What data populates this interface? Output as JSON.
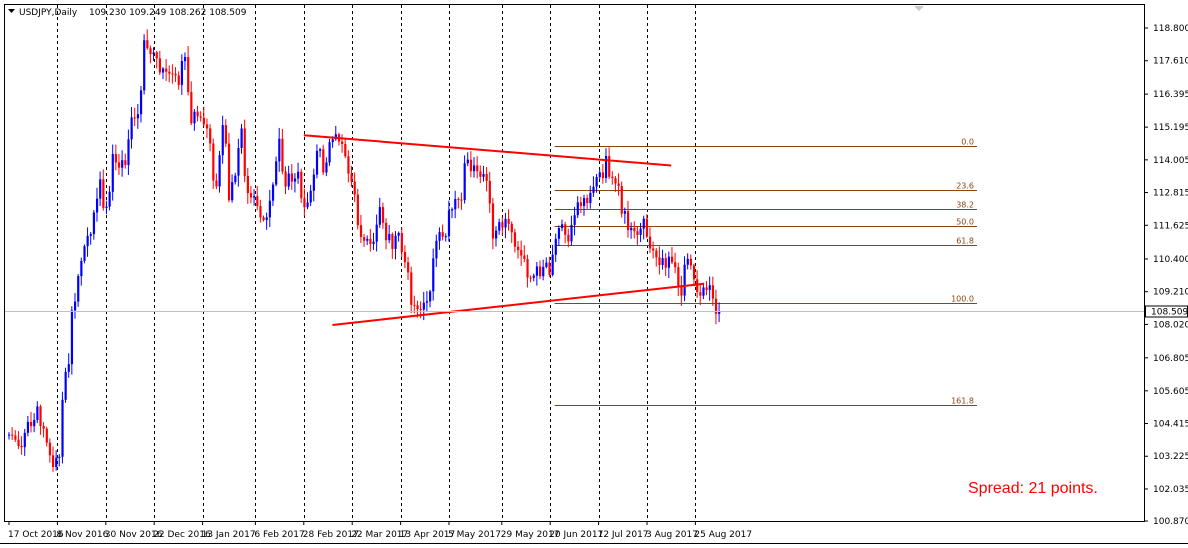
{
  "header": {
    "symbol": "USDJPY,Daily",
    "ohlc": "109.230 109.249 108.262 108.509"
  },
  "annotations": {
    "spread": "Spread: 21 points."
  },
  "colors": {
    "bull": "#0000ff",
    "bear": "#ff0000",
    "trendline": "#ff0000",
    "fib": "#8b4513",
    "grid": "#000000"
  },
  "chart_data": {
    "type": "candlestick",
    "symbol": "USDJPY",
    "timeframe": "Daily",
    "ylim": [
      100.0,
      119.5
    ],
    "y_ticks": [
      "118.800",
      "117.610",
      "116.395",
      "115.195",
      "114.005",
      "112.815",
      "111.625",
      "110.400",
      "109.210",
      "108.020",
      "106.805",
      "105.605",
      "104.415",
      "103.225",
      "102.035",
      "100.870"
    ],
    "x_ticks": [
      "17 Oct 2016",
      "8 Nov 2016",
      "30 Nov 2016",
      "22 Dec 2016",
      "13 Jan 2017",
      "6 Feb 2017",
      "28 Feb 2017",
      "22 Mar 2017",
      "13 Apr 2017",
      "5 May 2017",
      "29 May 2017",
      "20 Jun 2017",
      "12 Jul 2017",
      "3 Aug 2017",
      "25 Aug 2017"
    ],
    "grid_dates": [
      "8 Nov 2016",
      "30 Nov 2016",
      "22 Dec 2016",
      "13 Jan 2017",
      "6 Feb 2017",
      "28 Feb 2017",
      "22 Mar 2017",
      "13 Apr 2017",
      "5 May 2017",
      "29 May 2017",
      "20 Jun 2017",
      "12 Jul 2017",
      "3 Aug 2017",
      "25 Aug 2017"
    ],
    "current_price": "108.509",
    "anchors": [
      [
        "17 Oct 2016",
        104.0
      ],
      [
        "21 Oct 2016",
        103.5
      ],
      [
        "25 Oct 2016",
        104.4
      ],
      [
        "28 Oct 2016",
        104.8
      ],
      [
        "1 Nov 2016",
        104.3
      ],
      [
        "4 Nov 2016",
        103.1
      ],
      [
        "8 Nov 2016",
        103.3
      ],
      [
        "9 Nov 2016",
        105.5
      ],
      [
        "11 Nov 2016",
        106.8
      ],
      [
        "15 Nov 2016",
        109.0
      ],
      [
        "18 Nov 2016",
        110.9
      ],
      [
        "22 Nov 2016",
        111.3
      ],
      [
        "25 Nov 2016",
        113.2
      ],
      [
        "29 Nov 2016",
        112.2
      ],
      [
        "1 Dec 2016",
        114.0
      ],
      [
        "5 Dec 2016",
        113.8
      ],
      [
        "7 Dec 2016",
        113.7
      ],
      [
        "9 Dec 2016",
        115.3
      ],
      [
        "13 Dec 2016",
        115.4
      ],
      [
        "15 Dec 2016",
        118.2
      ],
      [
        "20 Dec 2016",
        117.7
      ],
      [
        "23 Dec 2016",
        117.3
      ],
      [
        "28 Dec 2016",
        117.4
      ],
      [
        "30 Dec 2016",
        116.8
      ],
      [
        "3 Jan 2017",
        117.6
      ],
      [
        "5 Jan 2017",
        115.4
      ],
      [
        "9 Jan 2017",
        115.8
      ],
      [
        "11 Jan 2017",
        115.4
      ],
      [
        "13 Jan 2017",
        114.4
      ],
      [
        "17 Jan 2017",
        112.8
      ],
      [
        "19 Jan 2017",
        115.3
      ],
      [
        "23 Jan 2017",
        112.8
      ],
      [
        "25 Jan 2017",
        113.3
      ],
      [
        "27 Jan 2017",
        115.1
      ],
      [
        "31 Jan 2017",
        112.7
      ],
      [
        "2 Feb 2017",
        112.8
      ],
      [
        "6 Feb 2017",
        111.8
      ],
      [
        "8 Feb 2017",
        111.9
      ],
      [
        "10 Feb 2017",
        113.2
      ],
      [
        "14 Feb 2017",
        114.5
      ],
      [
        "16 Feb 2017",
        113.2
      ],
      [
        "20 Feb 2017",
        113.4
      ],
      [
        "22 Feb 2017",
        113.3
      ],
      [
        "24 Feb 2017",
        112.1
      ],
      [
        "28 Feb 2017",
        112.8
      ],
      [
        "2 Mar 2017",
        114.3
      ],
      [
        "6 Mar 2017",
        113.8
      ],
      [
        "8 Mar 2017",
        114.4
      ],
      [
        "10 Mar 2017",
        114.8
      ],
      [
        "14 Mar 2017",
        114.7
      ],
      [
        "16 Mar 2017",
        113.3
      ],
      [
        "20 Mar 2017",
        112.6
      ],
      [
        "22 Mar 2017",
        111.2
      ],
      [
        "24 Mar 2017",
        111.3
      ],
      [
        "28 Mar 2017",
        111.0
      ],
      [
        "30 Mar 2017",
        112.1
      ],
      [
        "3 Apr 2017",
        111.3
      ],
      [
        "5 Apr 2017",
        110.8
      ],
      [
        "7 Apr 2017",
        111.2
      ],
      [
        "11 Apr 2017",
        110.4
      ],
      [
        "13 Apr 2017",
        109.0
      ],
      [
        "17 Apr 2017",
        108.6
      ],
      [
        "19 Apr 2017",
        108.9
      ],
      [
        "21 Apr 2017",
        109.2
      ],
      [
        "25 Apr 2017",
        111.1
      ],
      [
        "27 Apr 2017",
        111.3
      ],
      [
        "1 May 2017",
        111.9
      ],
      [
        "3 May 2017",
        112.7
      ],
      [
        "5 May 2017",
        112.8
      ],
      [
        "9 May 2017",
        113.9
      ],
      [
        "11 May 2017",
        113.8
      ],
      [
        "15 May 2017",
        113.6
      ],
      [
        "17 May 2017",
        113.3
      ],
      [
        "19 May 2017",
        111.4
      ],
      [
        "23 May 2017",
        111.8
      ],
      [
        "25 May 2017",
        111.8
      ],
      [
        "29 May 2017",
        111.3
      ],
      [
        "31 May 2017",
        110.9
      ],
      [
        "2 Jun 2017",
        110.3
      ],
      [
        "6 Jun 2017",
        109.5
      ],
      [
        "8 Jun 2017",
        110.0
      ],
      [
        "12 Jun 2017",
        110.1
      ],
      [
        "14 Jun 2017",
        109.9
      ],
      [
        "16 Jun 2017",
        110.9
      ],
      [
        "20 Jun 2017",
        111.5
      ],
      [
        "22 Jun 2017",
        111.3
      ],
      [
        "26 Jun 2017",
        111.9
      ],
      [
        "28 Jun 2017",
        112.6
      ],
      [
        "30 Jun 2017",
        112.2
      ],
      [
        "4 Jul 2017",
        113.3
      ],
      [
        "6 Jul 2017",
        113.3
      ],
      [
        "10 Jul 2017",
        114.0
      ],
      [
        "12 Jul 2017",
        113.2
      ],
      [
        "14 Jul 2017",
        112.9
      ],
      [
        "18 Jul 2017",
        112.0
      ],
      [
        "20 Jul 2017",
        111.4
      ],
      [
        "24 Jul 2017",
        111.1
      ],
      [
        "26 Jul 2017",
        111.7
      ],
      [
        "28 Jul 2017",
        110.6
      ],
      [
        "1 Aug 2017",
        110.4
      ],
      [
        "3 Aug 2017",
        110.2
      ],
      [
        "7 Aug 2017",
        110.6
      ],
      [
        "9 Aug 2017",
        110.1
      ],
      [
        "11 Aug 2017",
        109.2
      ],
      [
        "15 Aug 2017",
        110.5
      ],
      [
        "17 Aug 2017",
        109.6
      ],
      [
        "21 Aug 2017",
        109.0
      ],
      [
        "23 Aug 2017",
        109.5
      ],
      [
        "25 Aug 2017",
        109.2
      ],
      [
        "29 Aug 2017",
        108.5
      ]
    ],
    "trendlines": [
      {
        "from": [
          "28 Feb 2017",
          114.9
        ],
        "to": [
          "14 Aug 2017",
          113.8
        ]
      },
      {
        "from": [
          "13 Mar 2017",
          108.0
        ],
        "to": [
          "29 Aug 2017",
          109.5
        ]
      }
    ],
    "fibonacci": {
      "start_date": "22 Jun 2017",
      "end_date": "31 Dec 2017",
      "levels": [
        {
          "label": "0.0",
          "price": 114.5
        },
        {
          "label": "23.6",
          "price": 112.9
        },
        {
          "label": "38.2",
          "price": 112.2
        },
        {
          "label": "50.0",
          "price": 111.6
        },
        {
          "label": "61.8",
          "price": 110.9
        },
        {
          "label": "100.0",
          "price": 108.8
        },
        {
          "label": "161.8",
          "price": 105.1
        }
      ]
    }
  }
}
